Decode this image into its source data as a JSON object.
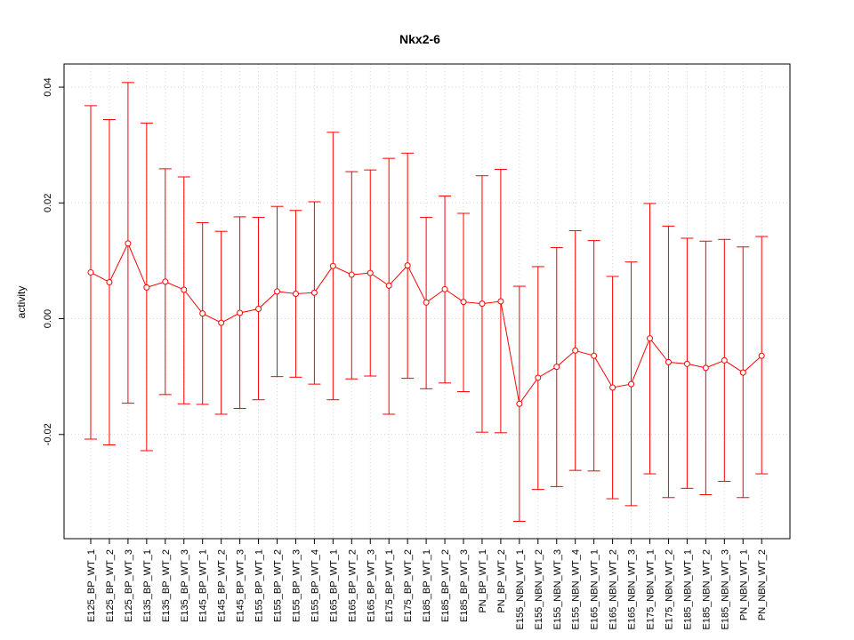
{
  "chart_data": {
    "type": "line",
    "title": "Nkx2-6",
    "xlabel": "",
    "ylabel": "activity",
    "ylim": [
      -0.038,
      0.044
    ],
    "yticks": [
      -0.02,
      0.0,
      0.02,
      0.04
    ],
    "ytick_labels": [
      "-0.02",
      "0.00",
      "0.02",
      "0.04"
    ],
    "grid": true,
    "color": "#ff0000",
    "categories": [
      "E125_BP_WT_1",
      "E125_BP_WT_2",
      "E125_BP_WT_3",
      "E135_BP_WT_1",
      "E135_BP_WT_2",
      "E135_BP_WT_3",
      "E145_BP_WT_1",
      "E145_BP_WT_2",
      "E145_BP_WT_3",
      "E155_BP_WT_1",
      "E155_BP_WT_2",
      "E155_BP_WT_3",
      "E155_BP_WT_4",
      "E165_BP_WT_1",
      "E165_BP_WT_2",
      "E165_BP_WT_3",
      "E175_BP_WT_1",
      "E175_BP_WT_2",
      "E185_BP_WT_1",
      "E185_BP_WT_2",
      "E185_BP_WT_3",
      "PN_BP_WT_1",
      "PN_BP_WT_2",
      "E155_NBN_WT_1",
      "E155_NBN_WT_2",
      "E155_NBN_WT_3",
      "E155_NBN_WT_4",
      "E165_NBN_WT_1",
      "E165_NBN_WT_2",
      "E165_NBN_WT_3",
      "E175_NBN_WT_1",
      "E175_NBN_WT_2",
      "E185_NBN_WT_1",
      "E185_NBN_WT_2",
      "E185_NBN_WT_3",
      "PN_NBN_WT_1",
      "PN_NBN_WT_2"
    ],
    "values": [
      0.008,
      0.0063,
      0.013,
      0.0054,
      0.0064,
      0.005,
      0.0009,
      -0.0007,
      0.001,
      0.0017,
      0.0047,
      0.0043,
      0.0045,
      0.0091,
      0.0076,
      0.0079,
      0.0057,
      0.0092,
      0.0028,
      0.0051,
      0.0029,
      0.0026,
      0.003,
      -0.0147,
      -0.0102,
      -0.0083,
      -0.0055,
      -0.0064,
      -0.0119,
      -0.0113,
      -0.0034,
      -0.0075,
      -0.0078,
      -0.0085,
      -0.0072,
      -0.0093,
      -0.0064
    ],
    "upper": [
      0.0368,
      0.0344,
      0.0408,
      0.0338,
      0.0259,
      0.0245,
      0.0166,
      0.0151,
      0.0176,
      0.0175,
      0.0194,
      0.0187,
      0.0202,
      0.0322,
      0.0254,
      0.0257,
      0.0277,
      0.0286,
      0.0175,
      0.0212,
      0.0182,
      0.0247,
      0.0258,
      0.0056,
      0.009,
      0.0123,
      0.0152,
      0.0135,
      0.0073,
      0.0098,
      0.0199,
      0.016,
      0.0139,
      0.0134,
      0.0137,
      0.0124,
      0.0142
    ],
    "lower": [
      -0.0208,
      -0.0218,
      -0.0146,
      -0.0228,
      -0.0131,
      -0.0147,
      -0.0148,
      -0.0165,
      -0.0155,
      -0.014,
      -0.01,
      -0.0101,
      -0.0113,
      -0.014,
      -0.0104,
      -0.0099,
      -0.0165,
      -0.0103,
      -0.0121,
      -0.0111,
      -0.0126,
      -0.0196,
      -0.0197,
      -0.035,
      -0.0295,
      -0.029,
      -0.0262,
      -0.0263,
      -0.0311,
      -0.0323,
      -0.0268,
      -0.0309,
      -0.0293,
      -0.0304,
      -0.0281,
      -0.0309,
      -0.0268
    ]
  }
}
